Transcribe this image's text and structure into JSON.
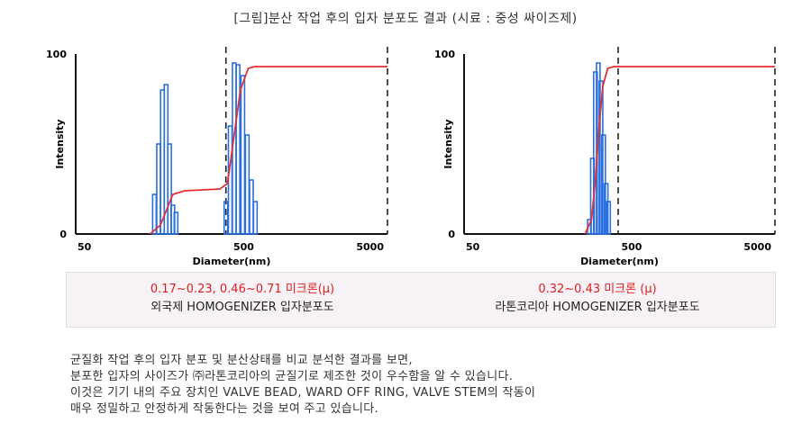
{
  "title": "[그림]분산 작업 후의 입자 분포도 결과 (시료 : 중성 싸이즈제)",
  "chart_data": [
    {
      "type": "bar",
      "ylabel": "Intensity",
      "xlabel": "Diameter(nm)",
      "xscale": "log",
      "xlim": [
        50,
        5000
      ],
      "xticks": [
        "50",
        "500",
        "5000"
      ],
      "yticks": [
        "0",
        "100"
      ],
      "ylim": [
        0,
        100
      ],
      "bars": [
        {
          "x": 160,
          "y": 22
        },
        {
          "x": 170,
          "y": 50
        },
        {
          "x": 180,
          "y": 80
        },
        {
          "x": 190,
          "y": 83
        },
        {
          "x": 200,
          "y": 50
        },
        {
          "x": 210,
          "y": 16
        },
        {
          "x": 220,
          "y": 12
        },
        {
          "x": 460,
          "y": 18
        },
        {
          "x": 490,
          "y": 60
        },
        {
          "x": 520,
          "y": 95
        },
        {
          "x": 550,
          "y": 94
        },
        {
          "x": 590,
          "y": 88
        },
        {
          "x": 630,
          "y": 55
        },
        {
          "x": 670,
          "y": 30
        },
        {
          "x": 710,
          "y": 18
        }
      ],
      "cumulative": [
        [
          150,
          0
        ],
        [
          175,
          5
        ],
        [
          210,
          22
        ],
        [
          250,
          24
        ],
        [
          420,
          25
        ],
        [
          470,
          28
        ],
        [
          520,
          55
        ],
        [
          570,
          80
        ],
        [
          640,
          92
        ],
        [
          700,
          93
        ],
        [
          5000,
          93
        ]
      ],
      "dashed_lines_x": [
        460,
        5000
      ],
      "caption": {
        "range": "0.17~0.23, 0.46~0.71 미크론(μ)",
        "name": "외국제 HOMOGENIZER 입자분포도"
      }
    },
    {
      "type": "bar",
      "ylabel": "Intensity",
      "xlabel": "Diameter(nm)",
      "xscale": "log",
      "xlim": [
        50,
        5000
      ],
      "xticks": [
        "50",
        "500",
        "5000"
      ],
      "yticks": [
        "0",
        "100"
      ],
      "ylim": [
        0,
        100
      ],
      "bars": [
        {
          "x": 320,
          "y": 8
        },
        {
          "x": 335,
          "y": 42
        },
        {
          "x": 350,
          "y": 90
        },
        {
          "x": 365,
          "y": 95
        },
        {
          "x": 380,
          "y": 85
        },
        {
          "x": 395,
          "y": 55
        },
        {
          "x": 410,
          "y": 28
        },
        {
          "x": 425,
          "y": 18
        }
      ],
      "cumulative": [
        [
          300,
          0
        ],
        [
          330,
          8
        ],
        [
          350,
          30
        ],
        [
          370,
          60
        ],
        [
          390,
          82
        ],
        [
          420,
          92
        ],
        [
          460,
          93
        ],
        [
          5000,
          93
        ]
      ],
      "dashed_lines_x": [
        490,
        5000
      ],
      "caption": {
        "range": "0.32~0.43 미크론 (μ)",
        "name": "라톤코리아 HOMOGENIZER 입자분포도"
      }
    }
  ],
  "summary": [
    "균질화 작업 후의 입자 분포 및 분산상태를 비교 분석한 결과를 보면,",
    "분포한 입자의 사이즈가 ㈜라톤코리아의 균질기로 제조한 것이 우수함을 알 수 있습니다.",
    "이것은 기기 내의 주요 장치인 VALVE BEAD, WARD OFF RING, VALVE STEM의 작동이",
    "매우 정밀하고 안정하게 작동한다는 것을 보여 주고 있습니다."
  ],
  "colors": {
    "bar": "#2a6fe0",
    "cumulative": "#e53030",
    "axis": "#111111",
    "range_text": "#e02020"
  }
}
